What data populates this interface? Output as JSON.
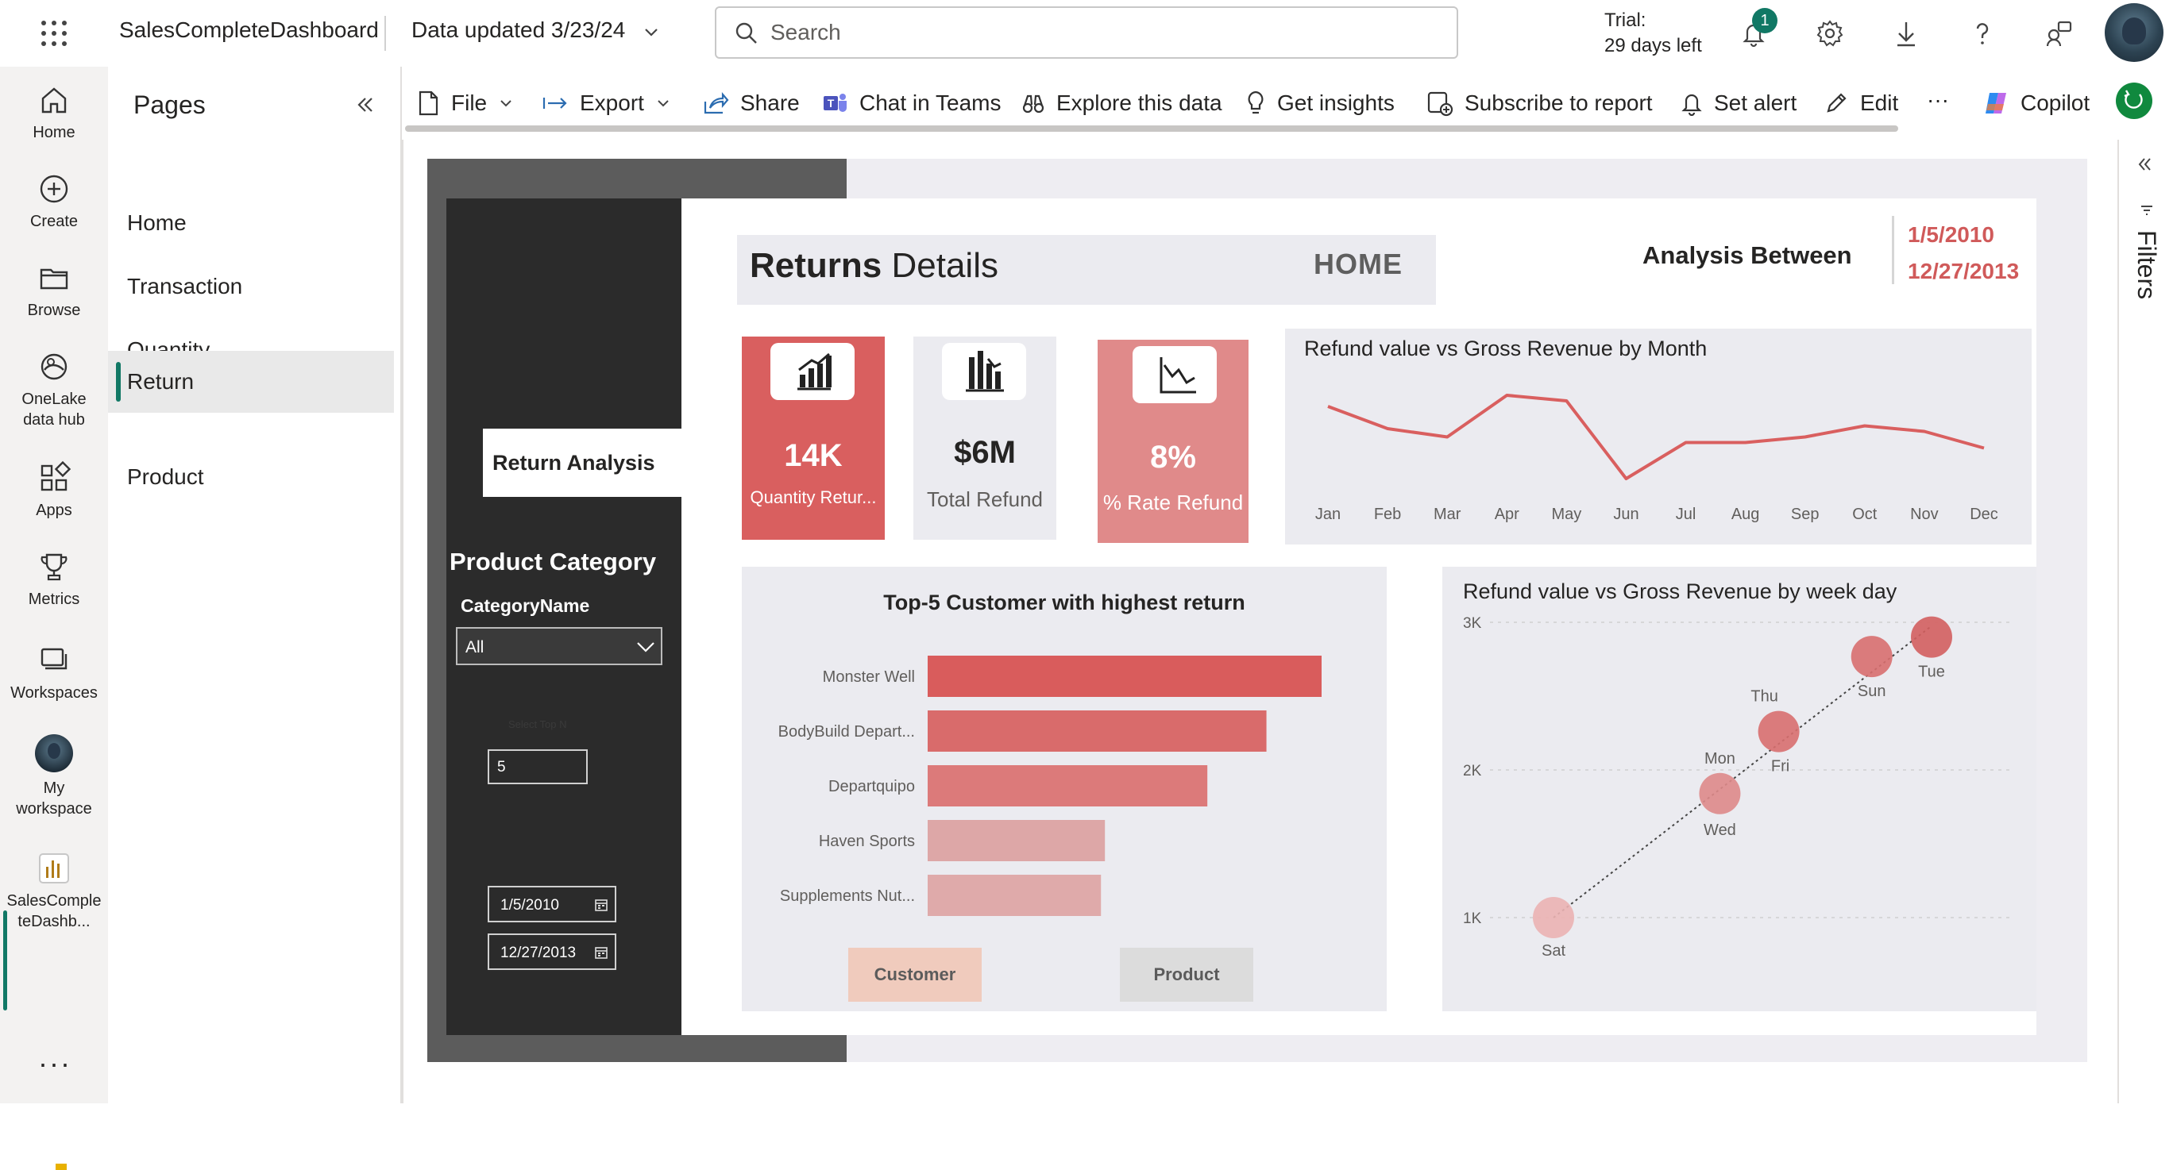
{
  "topbar": {
    "app_title": "SalesCompleteDashboard",
    "data_updated": "Data updated 3/23/24",
    "search_placeholder": "Search",
    "trial_line1": "Trial:",
    "trial_line2": "29 days left",
    "notification_count": "1"
  },
  "leftnav": {
    "items": [
      {
        "label": "Home",
        "icon": "home-icon"
      },
      {
        "label": "Create",
        "icon": "plus-circle-icon"
      },
      {
        "label": "Browse",
        "icon": "folder-icon"
      },
      {
        "label_line1": "OneLake",
        "label_line2": "data hub",
        "icon": "onelake-icon"
      },
      {
        "label": "Apps",
        "icon": "apps-icon"
      },
      {
        "label": "Metrics",
        "icon": "trophy-icon"
      },
      {
        "label": "Workspaces",
        "icon": "workspaces-icon"
      },
      {
        "label_line1": "My",
        "label_line2": "workspace",
        "icon": "avatar-icon"
      },
      {
        "label_line1": "SalesComple",
        "label_line2": "teDashb...",
        "icon": "report-icon"
      }
    ],
    "more": "···"
  },
  "pages": {
    "title": "Pages",
    "items": [
      "Home",
      "Transaction",
      "Quantity",
      "Return",
      "Product"
    ],
    "active": "Return"
  },
  "actionbar": {
    "file": "File",
    "export": "Export",
    "share": "Share",
    "chat_in_teams": "Chat in Teams",
    "explore": "Explore this data",
    "insights": "Get insights",
    "subscribe": "Subscribe to report",
    "alert": "Set alert",
    "edit": "Edit",
    "more": "···",
    "copilot": "Copilot"
  },
  "filters_label": "Filters",
  "report": {
    "return_analysis_tab": "Return Analysis",
    "product_category_title": "Product Category",
    "category_name_label": "CategoryName",
    "category_value": "All",
    "topn_label": "Select Top N",
    "topn_value": "5",
    "date_start": "1/5/2010",
    "date_end": "12/27/2013",
    "title_bold": "Returns",
    "title_rest": " Details",
    "home_button": "HOME",
    "analysis_between": "Analysis Between",
    "range_from": "1/5/2010",
    "range_to": "12/27/2013",
    "kpis": [
      {
        "value": "14K",
        "label": "Quantity Retur...",
        "icon": "bar-chart-icon",
        "bg": "#d95f5f"
      },
      {
        "value": "$6M",
        "label": "Total Refund",
        "icon": "building-chart-icon",
        "bg": "#ebebf0"
      },
      {
        "value": "8%",
        "label": "% Rate Refund",
        "icon": "trend-down-icon",
        "bg": "#e08a8a"
      }
    ],
    "customer_button": "Customer",
    "product_button": "Product"
  },
  "chart_data": [
    {
      "type": "line",
      "title": "Refund value vs Gross Revenue by Month",
      "categories": [
        "Jan",
        "Feb",
        "Mar",
        "Apr",
        "May",
        "Jun",
        "Jul",
        "Aug",
        "Sep",
        "Oct",
        "Nov",
        "Dec"
      ],
      "values": [
        0.62,
        0.54,
        0.51,
        0.66,
        0.64,
        0.36,
        0.49,
        0.49,
        0.51,
        0.55,
        0.53,
        0.47
      ],
      "color": "#d95f5f"
    },
    {
      "type": "bar",
      "title": "Top-5 Customer with highest return",
      "categories": [
        "Monster Well",
        "BodyBuild Depart...",
        "Departquipo",
        "Haven Sports",
        "Supplements Nut..."
      ],
      "values": [
        100,
        86,
        71,
        45,
        44
      ],
      "colors": [
        "#d95c5c",
        "#d96b6b",
        "#dc7a7a",
        "#dda7a7",
        "#dfaaaa"
      ]
    },
    {
      "type": "scatter",
      "title": "Refund value vs Gross Revenue by week day",
      "y_ticks": [
        "3K",
        "2K",
        "1K"
      ],
      "ylim": [
        700,
        3100
      ],
      "points": [
        {
          "label": "Sat",
          "x": 0.0,
          "y": 1000
        },
        {
          "label": "Wed",
          "x": 0.44,
          "y": 1840
        },
        {
          "label": "Mon",
          "x": 0.44,
          "y": 1840
        },
        {
          "label": "Fri",
          "x": 0.6,
          "y": 2260
        },
        {
          "label": "Thu",
          "x": 0.6,
          "y": 2260
        },
        {
          "label": "Sun",
          "x": 0.72,
          "y": 2510
        },
        {
          "label": "Tue",
          "x": 1.0,
          "y": 2900
        }
      ],
      "trend_line": true
    }
  ]
}
